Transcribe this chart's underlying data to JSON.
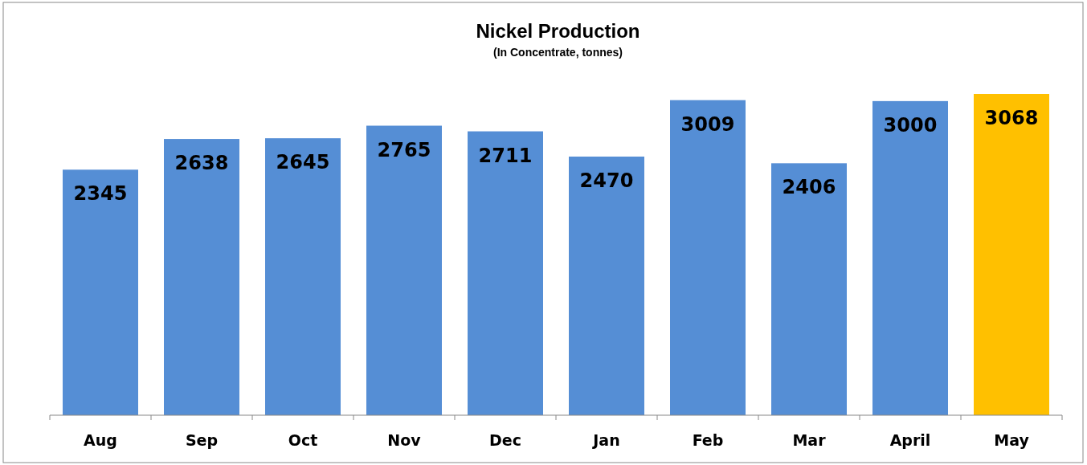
{
  "chart_data": {
    "type": "bar",
    "title": "Nickel Production",
    "subtitle": "(In Concentrate, tonnes)",
    "categories": [
      "Aug",
      "Sep",
      "Oct",
      "Nov",
      "Dec",
      "Jan",
      "Feb",
      "Mar",
      "April",
      "May"
    ],
    "values": [
      2345,
      2638,
      2645,
      2765,
      2711,
      2470,
      3009,
      2406,
      3000,
      3068
    ],
    "colors": [
      "#558ed5",
      "#558ed5",
      "#558ed5",
      "#558ed5",
      "#558ed5",
      "#558ed5",
      "#558ed5",
      "#558ed5",
      "#558ed5",
      "#ffc000"
    ],
    "data_labels": true,
    "grid": false
  }
}
